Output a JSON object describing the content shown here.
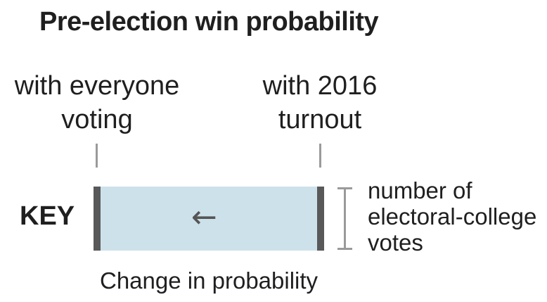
{
  "title": "Pre-election win probability",
  "labels": {
    "left_line1": "with everyone",
    "left_line2": "voting",
    "right_line1": "with 2016",
    "right_line2": "turnout"
  },
  "key_label": "KEY",
  "arrow_glyph": "←",
  "side_label": {
    "line1": "number of",
    "line2": "electoral-college",
    "line3": "votes"
  },
  "caption": "Change in probability",
  "colors": {
    "bar_fill": "#cde1ea",
    "bar_edges": "#595959",
    "ticks": "#9a9a9a"
  }
}
